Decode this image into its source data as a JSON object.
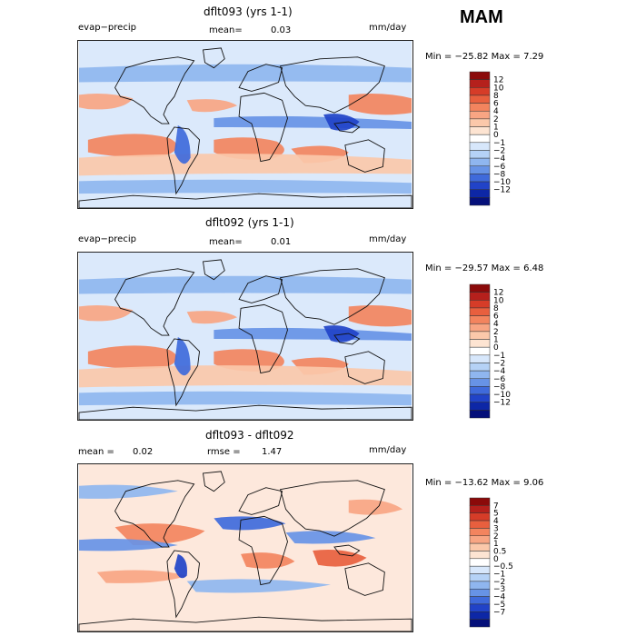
{
  "season": "MAM",
  "chart_data": [
    {
      "type": "heatmap",
      "title": "dflt093 (yrs 1-1)",
      "variable": "evap−precip",
      "stat_left": "",
      "stat_left_value": "",
      "stat_mid": "mean=",
      "stat_mid_value": "0.03",
      "units": "mm/day",
      "min_max_text": "Min = −25.82 Max =    7.29",
      "min": -25.82,
      "max": 7.29,
      "colorbar": {
        "labels": [
          "12",
          "10",
          "8",
          "6",
          "4",
          "2",
          "1",
          "0",
          "−1",
          "−2",
          "−4",
          "−6",
          "−8",
          "−10",
          "−12"
        ],
        "colors": [
          "#8b0a0a",
          "#b5201c",
          "#d63c28",
          "#e85f3e",
          "#f3845e",
          "#f8a583",
          "#fbc8aa",
          "#fde4d2",
          "#ffffff",
          "#d7e7fb",
          "#b5d2f6",
          "#8fb6ef",
          "#6793e6",
          "#3f6adb",
          "#2143c8",
          "#0d27a6",
          "#05107a"
        ]
      }
    },
    {
      "type": "heatmap",
      "title": "dflt092 (yrs 1-1)",
      "variable": "evap−precip",
      "stat_left": "",
      "stat_left_value": "",
      "stat_mid": "mean=",
      "stat_mid_value": "0.01",
      "units": "mm/day",
      "min_max_text": "Min = −29.57 Max =    6.48",
      "min": -29.57,
      "max": 6.48,
      "colorbar": {
        "labels": [
          "12",
          "10",
          "8",
          "6",
          "4",
          "2",
          "1",
          "0",
          "−1",
          "−2",
          "−4",
          "−6",
          "−8",
          "−10",
          "−12"
        ],
        "colors": [
          "#8b0a0a",
          "#b5201c",
          "#d63c28",
          "#e85f3e",
          "#f3845e",
          "#f8a583",
          "#fbc8aa",
          "#fde4d2",
          "#ffffff",
          "#d7e7fb",
          "#b5d2f6",
          "#8fb6ef",
          "#6793e6",
          "#3f6adb",
          "#2143c8",
          "#0d27a6",
          "#05107a"
        ]
      }
    },
    {
      "type": "heatmap",
      "title": "dflt093 - dflt092",
      "variable": "",
      "stat_left": "mean =",
      "stat_left_value": "0.02",
      "stat_mid": "rmse =",
      "stat_mid_value": "1.47",
      "units": "mm/day",
      "min_max_text": "Min = −13.62 Max =    9.06",
      "min": -13.62,
      "max": 9.06,
      "colorbar": {
        "labels": [
          "7",
          "5",
          "4",
          "3",
          "2",
          "1",
          "0.5",
          "0",
          "−0.5",
          "−1",
          "−2",
          "−3",
          "−4",
          "−5",
          "−7"
        ],
        "colors": [
          "#8b0a0a",
          "#b5201c",
          "#d63c28",
          "#e85f3e",
          "#f3845e",
          "#f8a583",
          "#fbc8aa",
          "#fde4d2",
          "#ffffff",
          "#d7e7fb",
          "#b5d2f6",
          "#8fb6ef",
          "#6793e6",
          "#3f6adb",
          "#2143c8",
          "#0d27a6",
          "#05107a"
        ]
      }
    }
  ]
}
